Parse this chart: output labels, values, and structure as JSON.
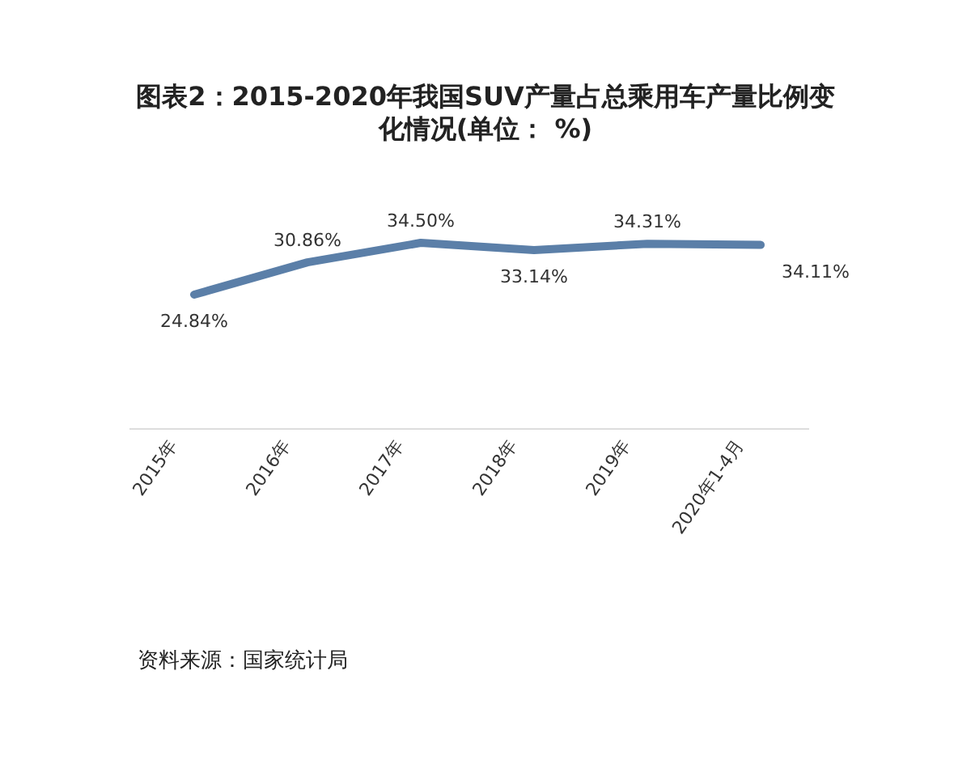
{
  "chart_data": {
    "type": "line",
    "title": "图表2：2015-2020年我国SUV产量占总乘用车产量比例变化情况(单位： %)",
    "categories": [
      "2015年",
      "2016年",
      "2017年",
      "2018年",
      "2019年",
      "2020年1-4月"
    ],
    "values": [
      24.84,
      30.86,
      34.5,
      33.14,
      34.31,
      34.11
    ],
    "value_labels": [
      "24.84%",
      "30.86%",
      "34.50%",
      "33.14%",
      "34.31%",
      "34.11%"
    ],
    "color": "#5b7fa8",
    "annotations": [
      "资料来源：国家统计局"
    ]
  }
}
